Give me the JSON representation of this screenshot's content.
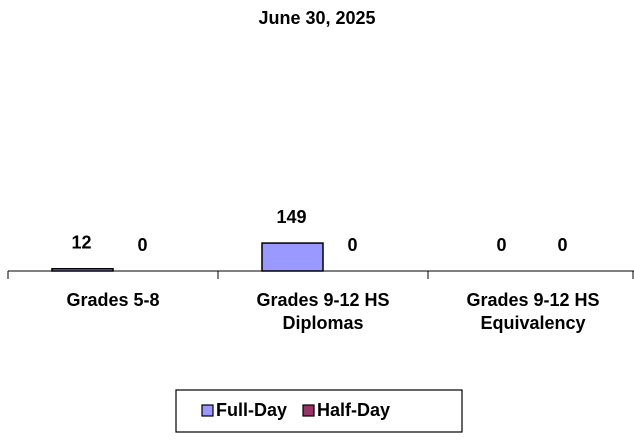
{
  "chart_data": {
    "type": "bar",
    "title": "June 30, 2025",
    "categories": [
      "Grades 5-8",
      "Grades 9-12 HS Diplomas",
      "Grades 9-12 HS Equivalency"
    ],
    "series": [
      {
        "name": "Full-Day",
        "color": "#9999ff",
        "values": [
          12,
          149,
          0
        ]
      },
      {
        "name": "Half-Day",
        "color": "#993366",
        "values": [
          0,
          0,
          0
        ]
      }
    ],
    "ylim": [
      0,
      800
    ],
    "legend": "bottom"
  }
}
